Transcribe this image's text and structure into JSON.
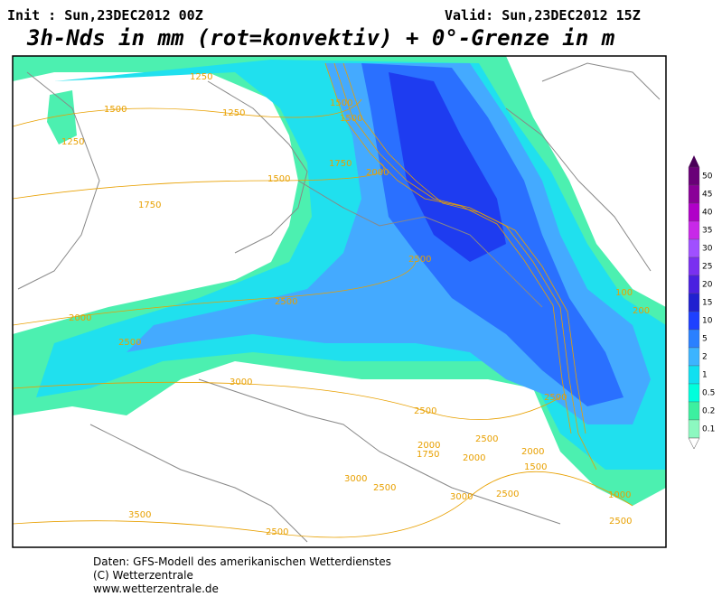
{
  "header": {
    "init": "Init : Sun,23DEC2012 00Z",
    "valid": "Valid: Sun,23DEC2012 15Z",
    "title": "3h-Nds in mm (rot=konvektiv) + 0°-Grenze in m"
  },
  "contour_labels": [
    "1250",
    "1500",
    "1250",
    "1250",
    "1500",
    "1750",
    "1500",
    "1500",
    "1750",
    "2000",
    "2500",
    "2500",
    "2000",
    "2500",
    "3000",
    "2500",
    "2000",
    "1750",
    "2500",
    "2000",
    "3000",
    "2500",
    "3000",
    "2500",
    "3500",
    "2500",
    "2000",
    "1500",
    "100",
    "200",
    "1000",
    "2500",
    "2500"
  ],
  "colorbar": {
    "labels": [
      "50",
      "45",
      "40",
      "35",
      "30",
      "25",
      "20",
      "15",
      "10",
      "5",
      "2",
      "1",
      "0.5",
      "0.2",
      "0.1"
    ]
  },
  "footer": [
    "Daten: GFS-Modell des amerikanischen Wetterdienstes",
    "(C) Wetterzentrale",
    "www.wetterzentrale.de"
  ]
}
